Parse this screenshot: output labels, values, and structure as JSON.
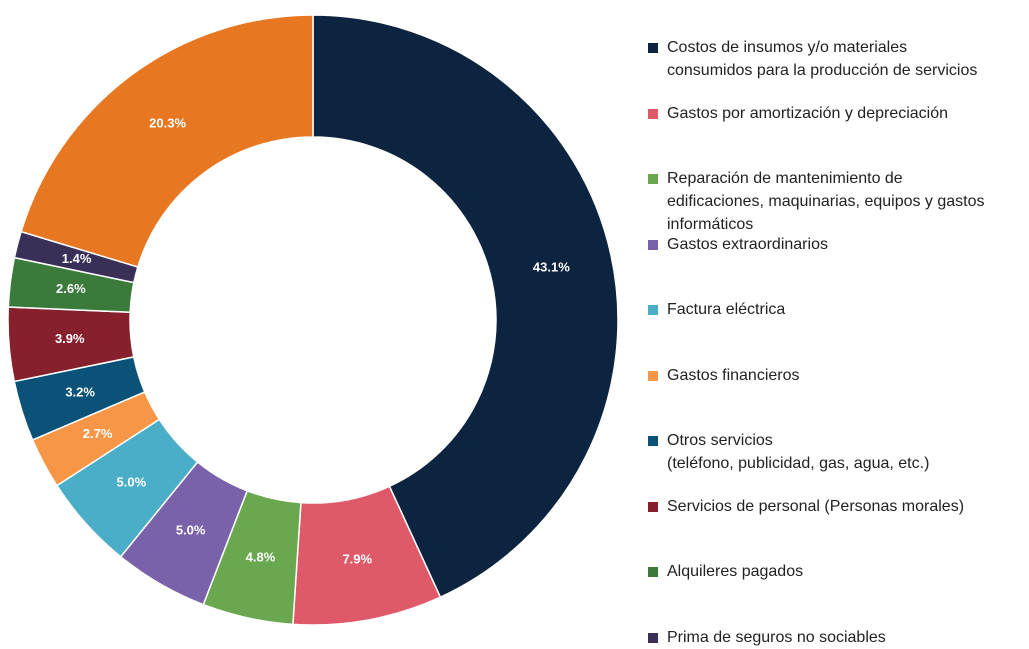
{
  "chart_data": {
    "type": "donut",
    "categories": [
      "Costos  de insumos y/o materiales\nconsumidos para la producción de servicios",
      "Gastos por amortización y depreciación",
      "Reparación de mantenimiento de\nedificaciones, maquinarias, equipos y gastos\ninformáticos",
      "Gastos extraordinarios",
      "Factura eléctrica",
      "Gastos financieros",
      "Otros servicios\n(teléfono, publicidad, gas, agua, etc.)",
      "Servicios de personal (Personas morales)",
      "Alquileres pagados",
      "Prima de seguros no sociables",
      null
    ],
    "values": [
      43.1,
      7.9,
      4.8,
      5.0,
      5.0,
      2.7,
      3.2,
      3.9,
      2.6,
      1.4,
      20.3
    ],
    "value_labels": [
      "43.1%",
      "7.9%",
      "4.8%",
      "5.0%",
      "5.0%",
      "2.7%",
      "3.2%",
      "3.9%",
      "2.6%",
      "1.4%",
      "20.3%"
    ],
    "colors": [
      "#0d2440",
      "#df5a69",
      "#6aa84f",
      "#7a62ab",
      "#4aaec8",
      "#f79646",
      "#0a5278",
      "#86202c",
      "#3a7a3a",
      "#3a3057",
      "#e87722"
    ]
  }
}
